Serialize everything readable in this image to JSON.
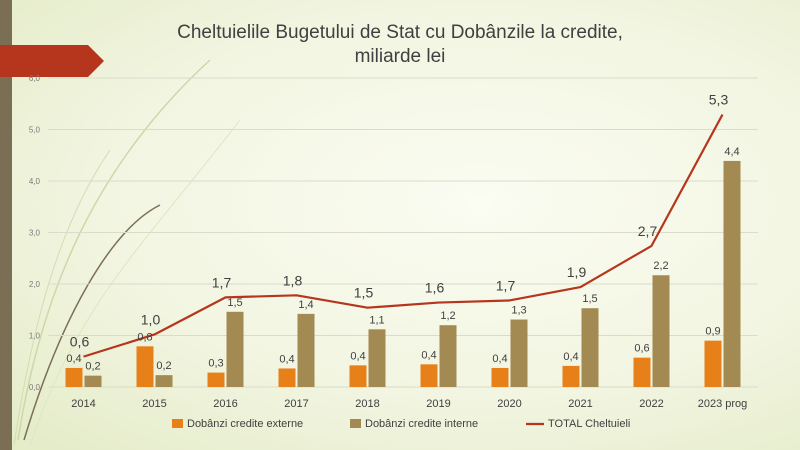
{
  "colors": {
    "external": "#e8801a",
    "internal": "#a38a52",
    "total": "#b5361c",
    "grid": "#d9dccb",
    "banner": "#b5361c",
    "sidebar": "#7a6f55"
  },
  "chart_data": {
    "type": "bar",
    "title_line1": "Cheltuielile Bugetului de Stat cu Dobânzile la credite,",
    "title_line2": "miliarde lei",
    "categories": [
      "2014",
      "2015",
      "2016",
      "2017",
      "2018",
      "2019",
      "2020",
      "2021",
      "2022",
      "2023 prog"
    ],
    "ylim": [
      0,
      6
    ],
    "yticks": [
      {
        "value": 0,
        "label": "0,0"
      },
      {
        "value": 1,
        "label": "1,0"
      },
      {
        "value": 2,
        "label": "2,0"
      },
      {
        "value": 3,
        "label": "3,0"
      },
      {
        "value": 4,
        "label": "4,0"
      },
      {
        "value": 5,
        "label": "5,0"
      },
      {
        "value": 6,
        "label": "6,0"
      }
    ],
    "grid": true,
    "legend_position": "bottom",
    "series": [
      {
        "name": "Dobânzi credite externe",
        "kind": "bar",
        "values": [
          0.37,
          0.79,
          0.28,
          0.36,
          0.42,
          0.44,
          0.37,
          0.41,
          0.57,
          0.9
        ],
        "labels": [
          "0,4",
          "0,8",
          "0,3",
          "0,4",
          "0,4",
          "0,4",
          "0,4",
          "0,4",
          "0,6",
          "0,9"
        ]
      },
      {
        "name": "Dobânzi credite interne",
        "kind": "bar",
        "values": [
          0.22,
          0.23,
          1.46,
          1.42,
          1.12,
          1.2,
          1.31,
          1.53,
          2.17,
          4.39
        ],
        "labels": [
          "0,2",
          "0,2",
          "1,5",
          "1,4",
          "1,1",
          "1,2",
          "1,3",
          "1,5",
          "2,2",
          "4,4"
        ]
      },
      {
        "name": "TOTAL Cheltuieli",
        "kind": "line",
        "values": [
          0.59,
          1.02,
          1.74,
          1.78,
          1.54,
          1.64,
          1.68,
          1.94,
          2.74,
          5.29
        ],
        "labels": [
          "0,6",
          "1,0",
          "1,7",
          "1,8",
          "1,5",
          "1,6",
          "1,7",
          "1,9",
          "2,7",
          "5,3"
        ]
      }
    ]
  }
}
